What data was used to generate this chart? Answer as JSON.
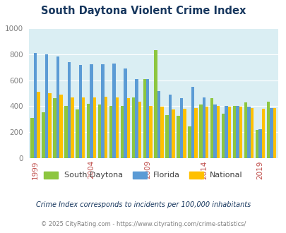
{
  "title": "South Daytona Violent Crime Index",
  "years": [
    1999,
    2000,
    2001,
    2002,
    2003,
    2004,
    2005,
    2006,
    2007,
    2008,
    2009,
    2010,
    2011,
    2012,
    2013,
    2014,
    2015,
    2016,
    2017,
    2018,
    2019,
    2020
  ],
  "south_daytona": [
    310,
    355,
    460,
    400,
    375,
    420,
    415,
    400,
    400,
    465,
    610,
    830,
    330,
    325,
    248,
    415,
    460,
    345,
    405,
    430,
    220,
    435
  ],
  "florida": [
    810,
    800,
    780,
    740,
    715,
    720,
    720,
    725,
    690,
    610,
    610,
    515,
    490,
    460,
    550,
    465,
    415,
    400,
    405,
    395,
    225,
    385
  ],
  "national": [
    510,
    500,
    490,
    465,
    465,
    465,
    475,
    465,
    460,
    435,
    405,
    395,
    375,
    380,
    385,
    395,
    400,
    395,
    395,
    385,
    380,
    385
  ],
  "colors": {
    "south_daytona": "#8dc63f",
    "florida": "#5b9bd5",
    "national": "#ffc000"
  },
  "ylim": [
    0,
    1000
  ],
  "yticks": [
    0,
    200,
    400,
    600,
    800,
    1000
  ],
  "xlabel_years": [
    1999,
    2004,
    2009,
    2014,
    2019
  ],
  "plot_bg": "#daeef3",
  "legend_labels": [
    "South Daytona",
    "Florida",
    "National"
  ],
  "footnote1": "Crime Index corresponds to incidents per 100,000 inhabitants",
  "footnote2": "© 2025 CityRating.com - https://www.cityrating.com/crime-statistics/",
  "title_color": "#17375e",
  "footnote1_color": "#17375e",
  "footnote2_color": "#808080",
  "bar_width": 0.28
}
